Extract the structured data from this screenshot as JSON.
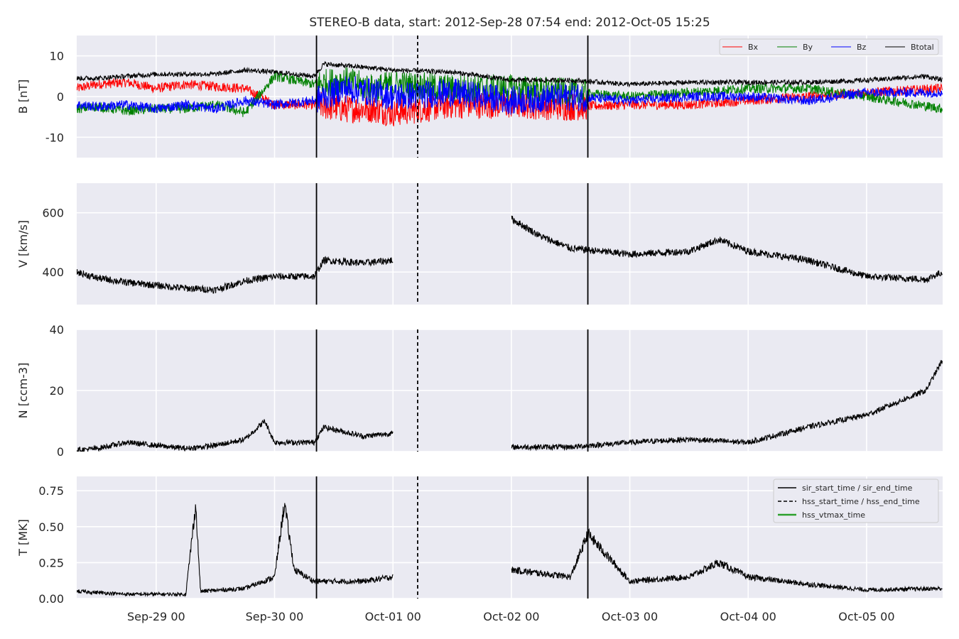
{
  "chart_data": {
    "type": "line",
    "title": "STEREO-B data, start: 2012-Sep-28 07:54  end: 2012-Oct-05 15:25",
    "x_unit": "date",
    "xlim": [
      "2012-09-28 07:54",
      "2012-10-05 15:25"
    ],
    "x_ticks": [
      "Sep-29 00",
      "Sep-30 00",
      "Oct-01 00",
      "Oct-02 00",
      "Oct-03 00",
      "Oct-04 00",
      "Oct-05 00"
    ],
    "x_tick_dates": [
      "2012-09-29 00:00",
      "2012-09-30 00:00",
      "2012-10-01 00:00",
      "2012-10-02 00:00",
      "2012-10-03 00:00",
      "2012-10-04 00:00",
      "2012-10-05 00:00"
    ],
    "grid": true,
    "data_gap": [
      "2012-10-01 00:00",
      "2012-10-02 00:00"
    ],
    "event_lines": [
      {
        "date": "2012-09-30 08:30",
        "style": "solid",
        "color": "#000000"
      },
      {
        "date": "2012-10-01 05:00",
        "style": "dashed",
        "color": "#000000"
      },
      {
        "date": "2012-10-02 15:30",
        "style": "solid",
        "color": "#000000"
      }
    ],
    "legend_events": {
      "placement": "top-right",
      "entries": [
        {
          "name": "sir_start_time / sir_end_time",
          "color": "#000000",
          "style": "solid"
        },
        {
          "name": "hss_start_time / hss_end_time",
          "color": "#000000",
          "style": "dashed"
        },
        {
          "name": "hss_vtmax_time",
          "color": "#2ca02c",
          "style": "solid"
        }
      ]
    },
    "panels": [
      {
        "id": "B",
        "ylabel": "B [nT]",
        "ylim": [
          -15,
          15
        ],
        "yticks": [
          10,
          0,
          -10
        ],
        "legend_placement": "top-right",
        "series": [
          {
            "name": "Bx",
            "color": "#ff0000",
            "values": [
              [
                "2012-09-28 07:54",
                2
              ],
              [
                "2012-09-28 12:00",
                3
              ],
              [
                "2012-09-28 18:00",
                3.5
              ],
              [
                "2012-09-29 00:00",
                2
              ],
              [
                "2012-09-29 06:00",
                3
              ],
              [
                "2012-09-29 12:00",
                2.5
              ],
              [
                "2012-09-29 18:00",
                2
              ],
              [
                "2012-09-30 00:00",
                -2
              ],
              [
                "2012-09-30 08:00",
                -2
              ],
              [
                "2012-09-30 14:00",
                -3
              ],
              [
                "2012-09-30 20:00",
                -3
              ],
              [
                "2012-10-01 00:00",
                -4
              ],
              [
                "2012-10-01 12:00",
                -2
              ],
              [
                "2012-10-02 00:00",
                -2
              ],
              [
                "2012-10-02 12:00",
                -2.5
              ],
              [
                "2012-10-03 00:00",
                -2
              ],
              [
                "2012-10-03 12:00",
                -2
              ],
              [
                "2012-10-04 00:00",
                -1
              ],
              [
                "2012-10-04 12:00",
                0
              ],
              [
                "2012-10-05 00:00",
                1
              ],
              [
                "2012-10-05 15:25",
                2
              ]
            ]
          },
          {
            "name": "By",
            "color": "#008000",
            "values": [
              [
                "2012-09-28 07:54",
                -3
              ],
              [
                "2012-09-28 12:00",
                -2.5
              ],
              [
                "2012-09-28 18:00",
                -3.5
              ],
              [
                "2012-09-29 00:00",
                -3
              ],
              [
                "2012-09-29 06:00",
                -3
              ],
              [
                "2012-09-29 12:00",
                -2
              ],
              [
                "2012-09-29 18:00",
                -4
              ],
              [
                "2012-09-30 00:00",
                5
              ],
              [
                "2012-09-30 08:00",
                3
              ],
              [
                "2012-09-30 14:00",
                4
              ],
              [
                "2012-09-30 20:00",
                2
              ],
              [
                "2012-10-01 00:00",
                3
              ],
              [
                "2012-10-01 12:00",
                2
              ],
              [
                "2012-10-02 00:00",
                2
              ],
              [
                "2012-10-02 12:00",
                1
              ],
              [
                "2012-10-03 00:00",
                0
              ],
              [
                "2012-10-03 12:00",
                1
              ],
              [
                "2012-10-04 00:00",
                2
              ],
              [
                "2012-10-04 12:00",
                2
              ],
              [
                "2012-10-05 00:00",
                0
              ],
              [
                "2012-10-05 15:25",
                -3
              ]
            ]
          },
          {
            "name": "Bz",
            "color": "#0000ff",
            "values": [
              [
                "2012-09-28 07:54",
                -2
              ],
              [
                "2012-09-28 12:00",
                -2.5
              ],
              [
                "2012-09-28 18:00",
                -2
              ],
              [
                "2012-09-29 00:00",
                -3
              ],
              [
                "2012-09-29 06:00",
                -2
              ],
              [
                "2012-09-29 12:00",
                -3
              ],
              [
                "2012-09-29 18:00",
                -1
              ],
              [
                "2012-09-30 00:00",
                -2
              ],
              [
                "2012-09-30 08:00",
                -1
              ],
              [
                "2012-09-30 14:00",
                2
              ],
              [
                "2012-09-30 20:00",
                1
              ],
              [
                "2012-10-01 00:00",
                0
              ],
              [
                "2012-10-01 12:00",
                1
              ],
              [
                "2012-10-02 00:00",
                -1
              ],
              [
                "2012-10-02 12:00",
                0
              ],
              [
                "2012-10-03 00:00",
                -1
              ],
              [
                "2012-10-03 12:00",
                0
              ],
              [
                "2012-10-04 00:00",
                0
              ],
              [
                "2012-10-04 12:00",
                -1
              ],
              [
                "2012-10-05 00:00",
                1
              ],
              [
                "2012-10-05 15:25",
                1
              ]
            ]
          },
          {
            "name": "Btotal",
            "color": "#000000",
            "values": [
              [
                "2012-09-28 07:54",
                4.5
              ],
              [
                "2012-09-28 12:00",
                4.5
              ],
              [
                "2012-09-28 18:00",
                5
              ],
              [
                "2012-09-29 00:00",
                5.5
              ],
              [
                "2012-09-29 06:00",
                5.5
              ],
              [
                "2012-09-29 12:00",
                5.5
              ],
              [
                "2012-09-29 18:00",
                6.5
              ],
              [
                "2012-09-30 00:00",
                6
              ],
              [
                "2012-09-30 08:00",
                5
              ],
              [
                "2012-09-30 10:00",
                8
              ],
              [
                "2012-09-30 20:00",
                7
              ],
              [
                "2012-10-01 00:00",
                6.5
              ],
              [
                "2012-10-01 12:00",
                6
              ],
              [
                "2012-10-02 00:00",
                4
              ],
              [
                "2012-10-02 12:00",
                4
              ],
              [
                "2012-10-03 00:00",
                3
              ],
              [
                "2012-10-03 12:00",
                3.5
              ],
              [
                "2012-10-04 00:00",
                3.5
              ],
              [
                "2012-10-04 12:00",
                3.5
              ],
              [
                "2012-10-05 00:00",
                4
              ],
              [
                "2012-10-05 12:00",
                5
              ],
              [
                "2012-10-05 15:25",
                4
              ]
            ]
          }
        ]
      },
      {
        "id": "V",
        "ylabel": "V [km/s]",
        "ylim": [
          290,
          700
        ],
        "yticks": [
          600,
          400
        ],
        "series": [
          {
            "name": "V",
            "color": "#000000",
            "values": [
              [
                "2012-09-28 07:54",
                400
              ],
              [
                "2012-09-28 12:00",
                380
              ],
              [
                "2012-09-28 18:00",
                365
              ],
              [
                "2012-09-29 00:00",
                355
              ],
              [
                "2012-09-29 06:00",
                345
              ],
              [
                "2012-09-29 12:00",
                340
              ],
              [
                "2012-09-29 18:00",
                370
              ],
              [
                "2012-09-30 00:00",
                385
              ],
              [
                "2012-09-30 08:00",
                385
              ],
              [
                "2012-09-30 10:00",
                440
              ],
              [
                "2012-09-30 18:00",
                430
              ],
              [
                "2012-10-01 00:00",
                440
              ],
              [
                "2012-10-02 00:00",
                580
              ],
              [
                "2012-10-02 06:00",
                520
              ],
              [
                "2012-10-02 12:00",
                480
              ],
              [
                "2012-10-03 00:00",
                460
              ],
              [
                "2012-10-03 12:00",
                470
              ],
              [
                "2012-10-03 18:00",
                510
              ],
              [
                "2012-10-04 00:00",
                470
              ],
              [
                "2012-10-04 12:00",
                440
              ],
              [
                "2012-10-05 00:00",
                385
              ],
              [
                "2012-10-05 12:00",
                375
              ],
              [
                "2012-10-05 15:25",
                400
              ]
            ]
          }
        ]
      },
      {
        "id": "N",
        "ylabel": "N [ccm-3]",
        "ylim": [
          0,
          40
        ],
        "yticks": [
          40,
          20,
          0
        ],
        "series": [
          {
            "name": "N",
            "color": "#000000",
            "values": [
              [
                "2012-09-28 07:54",
                0.5
              ],
              [
                "2012-09-28 12:00",
                1
              ],
              [
                "2012-09-28 18:00",
                3
              ],
              [
                "2012-09-29 00:00",
                2
              ],
              [
                "2012-09-29 06:00",
                1
              ],
              [
                "2012-09-29 12:00",
                2
              ],
              [
                "2012-09-29 18:00",
                4
              ],
              [
                "2012-09-29 22:00",
                10
              ],
              [
                "2012-09-30 00:00",
                3
              ],
              [
                "2012-09-30 08:00",
                3
              ],
              [
                "2012-09-30 10:00",
                8
              ],
              [
                "2012-09-30 18:00",
                5
              ],
              [
                "2012-10-01 00:00",
                6
              ],
              [
                "2012-10-02 00:00",
                1.5
              ],
              [
                "2012-10-02 12:00",
                1.5
              ],
              [
                "2012-10-03 00:00",
                3
              ],
              [
                "2012-10-03 12:00",
                4
              ],
              [
                "2012-10-04 00:00",
                3
              ],
              [
                "2012-10-04 12:00",
                8
              ],
              [
                "2012-10-05 00:00",
                12
              ],
              [
                "2012-10-05 12:00",
                20
              ],
              [
                "2012-10-05 15:25",
                30
              ]
            ]
          }
        ]
      },
      {
        "id": "T",
        "ylabel": "T [MK]",
        "ylim": [
          0,
          0.85
        ],
        "yticks": [
          0.75,
          0.5,
          0.25,
          0.0
        ],
        "ytick_labels": [
          "0.75",
          "0.50",
          "0.25",
          "0.00"
        ],
        "series": [
          {
            "name": "T",
            "color": "#000000",
            "values": [
              [
                "2012-09-28 07:54",
                0.05
              ],
              [
                "2012-09-28 18:00",
                0.03
              ],
              [
                "2012-09-29 06:00",
                0.03
              ],
              [
                "2012-09-29 08:00",
                0.65
              ],
              [
                "2012-09-29 09:00",
                0.05
              ],
              [
                "2012-09-29 18:00",
                0.07
              ],
              [
                "2012-09-30 00:00",
                0.15
              ],
              [
                "2012-09-30 02:00",
                0.66
              ],
              [
                "2012-09-30 04:00",
                0.2
              ],
              [
                "2012-09-30 08:00",
                0.12
              ],
              [
                "2012-09-30 18:00",
                0.12
              ],
              [
                "2012-10-01 00:00",
                0.15
              ],
              [
                "2012-10-02 00:00",
                0.2
              ],
              [
                "2012-10-02 12:00",
                0.15
              ],
              [
                "2012-10-02 15:30",
                0.45
              ],
              [
                "2012-10-03 00:00",
                0.12
              ],
              [
                "2012-10-03 12:00",
                0.15
              ],
              [
                "2012-10-03 18:00",
                0.25
              ],
              [
                "2012-10-04 00:00",
                0.15
              ],
              [
                "2012-10-04 12:00",
                0.1
              ],
              [
                "2012-10-05 00:00",
                0.06
              ],
              [
                "2012-10-05 15:25",
                0.07
              ]
            ]
          }
        ]
      }
    ]
  }
}
